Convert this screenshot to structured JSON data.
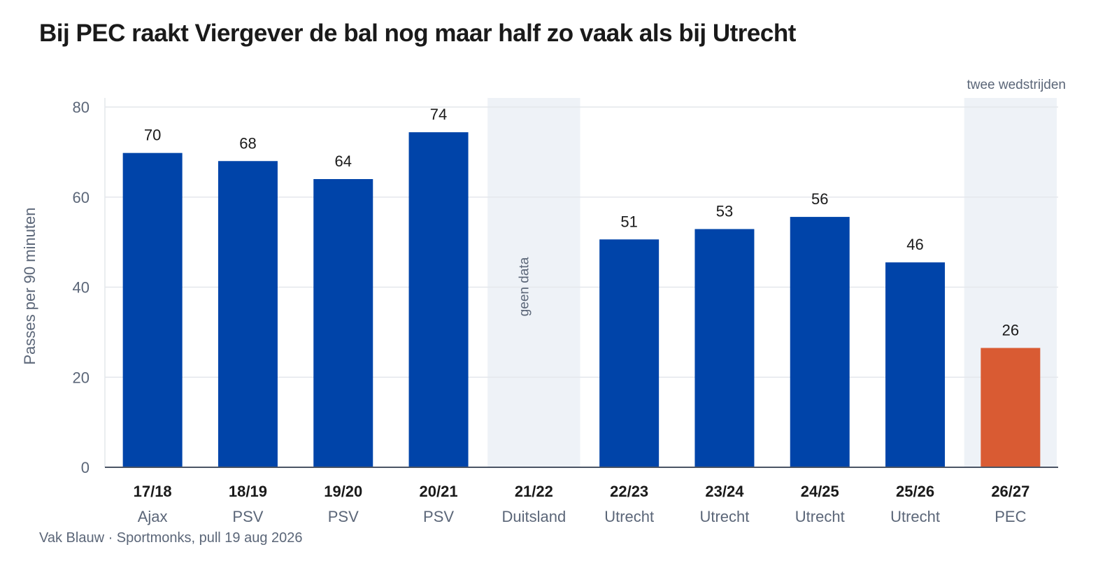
{
  "title": "Bij PEC raakt Viergever de bal nog maar half zo vaak als bij Utrecht",
  "footer": "Vak Blauw · Sportmonks, pull 19 aug 2026",
  "colors": {
    "bar": "#0044a9",
    "highlight": "#d95b33",
    "shade": "#eef2f7",
    "grid": "#e4e7ec",
    "axis": "#4a5464"
  },
  "chart_data": {
    "type": "bar",
    "title": "Bij PEC raakt Viergever de bal nog maar half zo vaak als bij Utrecht",
    "ylabel": "Passes per 90 minuten",
    "xlabel": "",
    "ylim": [
      0,
      82
    ],
    "yticks": [
      0,
      20,
      40,
      60,
      80
    ],
    "grid": true,
    "categories": [
      "17/18",
      "18/19",
      "19/20",
      "20/21",
      "21/22",
      "22/23",
      "23/24",
      "24/25",
      "25/26",
      "26/27"
    ],
    "subcategories": [
      "Ajax",
      "PSV",
      "PSV",
      "PSV",
      "Duitsland",
      "Utrecht",
      "Utrecht",
      "Utrecht",
      "Utrecht",
      "PEC"
    ],
    "values": [
      69.8,
      68,
      64,
      74.4,
      null,
      50.6,
      52.9,
      55.6,
      45.5,
      26.5
    ],
    "labels": [
      "70",
      "68",
      "64",
      "74",
      "",
      "51",
      "53",
      "56",
      "46",
      "26"
    ],
    "highlight_index": 9,
    "annotations": [
      {
        "category": "21/22",
        "text": "geen data",
        "shaded": true
      },
      {
        "category": "26/27",
        "text": "twee wedstrijden",
        "shaded": true
      }
    ]
  }
}
